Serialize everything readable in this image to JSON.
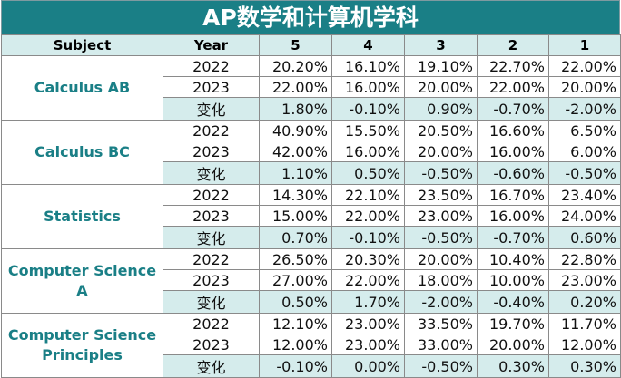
{
  "title": "AP数学和计算机学科",
  "columns": [
    "Subject",
    "Year",
    "5",
    "4",
    "3",
    "2",
    "1"
  ],
  "subjects": [
    {
      "name": "Calculus AB",
      "rows": [
        {
          "label": "2022",
          "values": [
            "20.20%",
            "16.10%",
            "19.10%",
            "22.70%",
            "22.00%"
          ]
        },
        {
          "label": "2023",
          "values": [
            "22.00%",
            "16.00%",
            "20.00%",
            "22.00%",
            "20.00%"
          ]
        },
        {
          "label": "变化",
          "values": [
            "1.80%",
            "-0.10%",
            "0.90%",
            "-0.70%",
            "-2.00%"
          ]
        }
      ]
    },
    {
      "name": "Calculus BC",
      "rows": [
        {
          "label": "2022",
          "values": [
            "40.90%",
            "15.50%",
            "20.50%",
            "16.60%",
            "6.50%"
          ]
        },
        {
          "label": "2023",
          "values": [
            "42.00%",
            "16.00%",
            "20.00%",
            "16.00%",
            "6.00%"
          ]
        },
        {
          "label": "变化",
          "values": [
            "1.10%",
            "0.50%",
            "-0.50%",
            "-0.60%",
            "-0.50%"
          ]
        }
      ]
    },
    {
      "name": "Statistics",
      "rows": [
        {
          "label": "2022",
          "values": [
            "14.30%",
            "22.10%",
            "23.50%",
            "16.70%",
            "23.40%"
          ]
        },
        {
          "label": "2023",
          "values": [
            "15.00%",
            "22.00%",
            "23.00%",
            "16.00%",
            "24.00%"
          ]
        },
        {
          "label": "变化",
          "values": [
            "0.70%",
            "-0.10%",
            "-0.50%",
            "-0.70%",
            "0.60%"
          ]
        }
      ]
    },
    {
      "name": "Computer Science A",
      "rows": [
        {
          "label": "2022",
          "values": [
            "26.50%",
            "20.30%",
            "20.00%",
            "10.40%",
            "22.80%"
          ]
        },
        {
          "label": "2023",
          "values": [
            "27.00%",
            "22.00%",
            "18.00%",
            "10.00%",
            "23.00%"
          ]
        },
        {
          "label": "变化",
          "values": [
            "0.50%",
            "1.70%",
            "-2.00%",
            "-0.40%",
            "0.20%"
          ]
        }
      ]
    },
    {
      "name": "Computer Science Principles",
      "rows": [
        {
          "label": "2022",
          "values": [
            "12.10%",
            "23.00%",
            "33.50%",
            "19.70%",
            "11.70%"
          ]
        },
        {
          "label": "2023",
          "values": [
            "12.00%",
            "23.00%",
            "33.00%",
            "20.00%",
            "12.00%"
          ]
        },
        {
          "label": "变化",
          "values": [
            "-0.10%",
            "0.00%",
            "-0.50%",
            "0.30%",
            "0.30%"
          ]
        }
      ]
    }
  ]
}
